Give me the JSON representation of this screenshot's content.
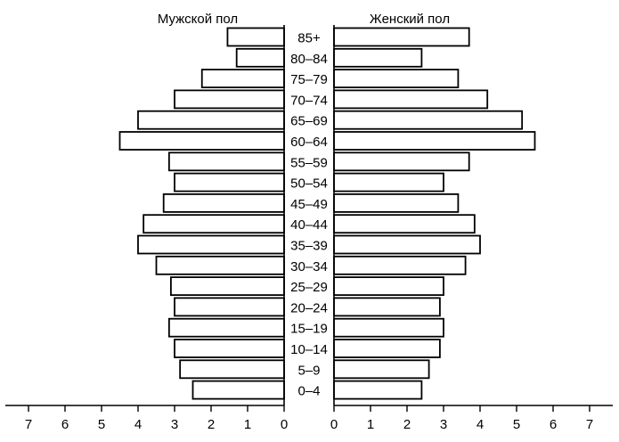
{
  "chart_data": {
    "type": "bar",
    "orientation": "horizontal",
    "categories": [
      "85+",
      "80–84",
      "75–79",
      "70–74",
      "65–69",
      "60–64",
      "55–59",
      "50–54",
      "45–49",
      "40–44",
      "35–39",
      "30–34",
      "25–29",
      "20–24",
      "15–19",
      "10–14",
      "5–9",
      "0–4"
    ],
    "series": [
      {
        "name": "Мужской пол",
        "values": [
          1.55,
          1.3,
          2.25,
          3.0,
          4.0,
          4.5,
          3.15,
          3.0,
          3.3,
          3.85,
          4.0,
          3.5,
          3.1,
          3.0,
          3.15,
          3.0,
          2.85,
          2.5
        ]
      },
      {
        "name": "Женский пол",
        "values": [
          3.7,
          2.4,
          3.4,
          4.2,
          5.15,
          5.5,
          3.7,
          3.0,
          3.4,
          3.85,
          4.0,
          3.6,
          3.0,
          2.9,
          3.0,
          2.9,
          2.6,
          2.4
        ]
      }
    ],
    "xlim": [
      0,
      7
    ],
    "ticks": [
      "0",
      "1",
      "2",
      "3",
      "4",
      "5",
      "6",
      "7"
    ],
    "grid": false
  }
}
